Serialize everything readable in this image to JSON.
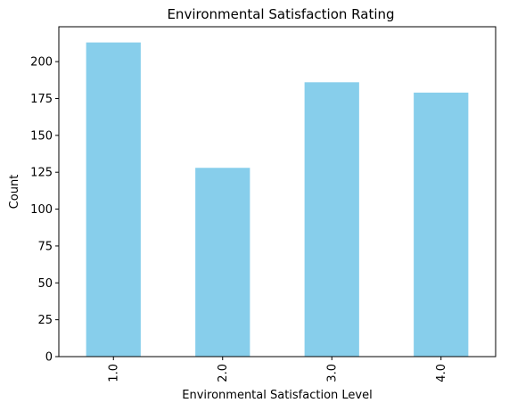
{
  "chart_data": {
    "type": "bar",
    "title": "Environmental Satisfaction Rating",
    "xlabel": "Environmental Satisfaction Level",
    "ylabel": "Count",
    "categories": [
      "1.0",
      "2.0",
      "3.0",
      "4.0"
    ],
    "values": [
      213,
      128,
      186,
      179
    ],
    "ylim": [
      0,
      223.65
    ],
    "yticks": [
      "0",
      "25",
      "50",
      "75",
      "100",
      "125",
      "150",
      "175",
      "200"
    ],
    "bar_color": "#87ceeb",
    "grid": false,
    "legend": "none"
  }
}
